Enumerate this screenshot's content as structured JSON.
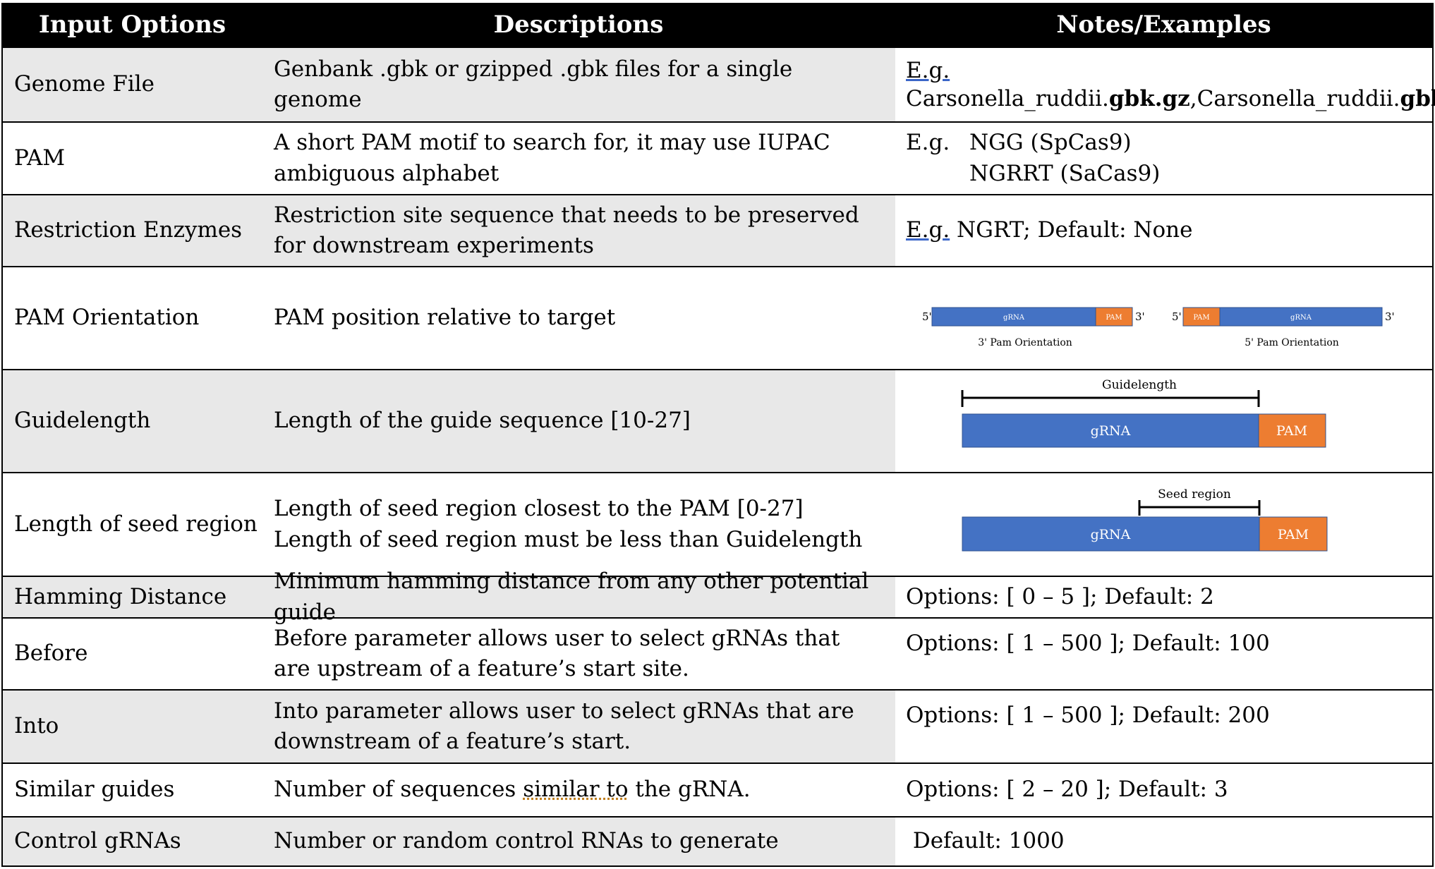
{
  "headers": [
    "Input Options",
    "Descriptions",
    "Notes/Examples"
  ],
  "rows": [
    {
      "option": "Genome File",
      "description": "Genbank .gbk or gzipped .gbk files for a single genome",
      "note_eg": "E.g.",
      "note_a": "Carsonella_ruddii.",
      "note_b": "gbk.gz",
      "note_c": ",Carsonella_ruddii.",
      "note_d": "gbk"
    },
    {
      "option": "PAM",
      "description": "A short PAM motif to search for, it may use IUPAC ambiguous alphabet",
      "note_eg": "E.g.",
      "note_line1": "NGG (SpCas9)",
      "note_line2": "NGRRT  (SaCas9)"
    },
    {
      "option": "Restriction Enzymes",
      "description": "Restriction site sequence that needs to be preserved for downstream experiments",
      "note_eg": "E.g.",
      "note": " NGRT; Default: None"
    },
    {
      "option": "PAM Orientation",
      "description": "PAM position relative to target",
      "diagram": {
        "five": "5'",
        "three": "3'",
        "grna": "gRNA",
        "pam": "PAM",
        "caption_left": "3' Pam Orientation",
        "caption_right": "5' Pam Orientation"
      }
    },
    {
      "option": "Guidelength",
      "description": "Length of the guide sequence [10-27]",
      "diagram": {
        "label": "Guidelength",
        "grna": "gRNA",
        "pam": "PAM"
      }
    },
    {
      "option": "Length of  seed region",
      "description": "Length of  seed region closest to the PAM [0-27] Length of seed region must be less than Guidelength",
      "diagram": {
        "label": "Seed region",
        "grna": "gRNA",
        "pam": "PAM"
      }
    },
    {
      "option": "Hamming Distance",
      "description": "Minimum hamming distance from any other potential guide",
      "note": "Options: [ 0 – 5 ]; Default: 2"
    },
    {
      "option": "Before",
      "description": "Before parameter allows user to select gRNAs that are upstream of  a feature’s  start site.",
      "note": "Options: [ 1 – 500  ]; Default: 100"
    },
    {
      "option": "Into",
      "description": "Into parameter allows user to select gRNAs that are downstream of  a feature’s start.",
      "note": "Options: [ 1 – 500 ]; Default: 200"
    },
    {
      "option": "Similar guides",
      "description_a": "Number of  sequences ",
      "description_b": "similar to",
      "description_c": " the gRNA.",
      "note": "Options: [ 2 – 20 ]; Default: 3"
    },
    {
      "option": "Control gRNAs",
      "description": "Number or random control RNAs to generate",
      "note": " Default: 1000"
    }
  ],
  "colors": {
    "grna_blue": "#4472c4",
    "pam_orange": "#ed7d31",
    "shade": "#e8e8e8"
  }
}
